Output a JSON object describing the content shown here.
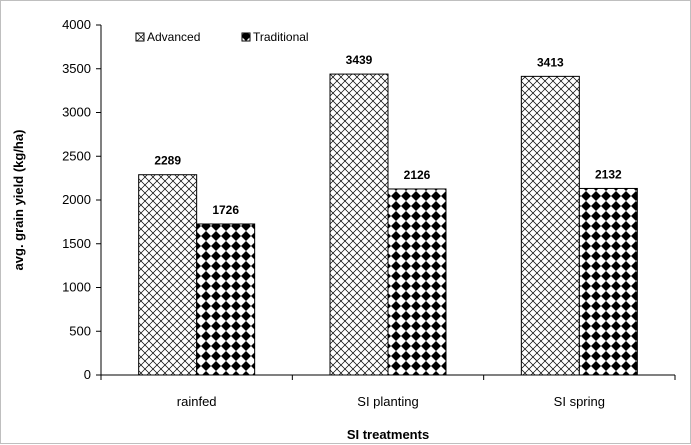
{
  "chart_data": {
    "type": "bar",
    "categories": [
      "rainfed",
      "SI planting",
      "SI spring"
    ],
    "series": [
      {
        "name": "Advanced",
        "values": [
          2289,
          3439,
          3413
        ],
        "pattern": "crosshatch"
      },
      {
        "name": "Traditional",
        "values": [
          1726,
          2126,
          2132
        ],
        "pattern": "diamond-checker"
      }
    ],
    "title": "",
    "xlabel": "SI treatments",
    "ylabel": "avg. grain yield (kg/ha)",
    "ylim": [
      0,
      4000
    ],
    "yticks": [
      0,
      500,
      1000,
      1500,
      2000,
      2500,
      3000,
      3500,
      4000
    ],
    "grid": false,
    "legend_position": "top-left",
    "data_labels": true
  }
}
